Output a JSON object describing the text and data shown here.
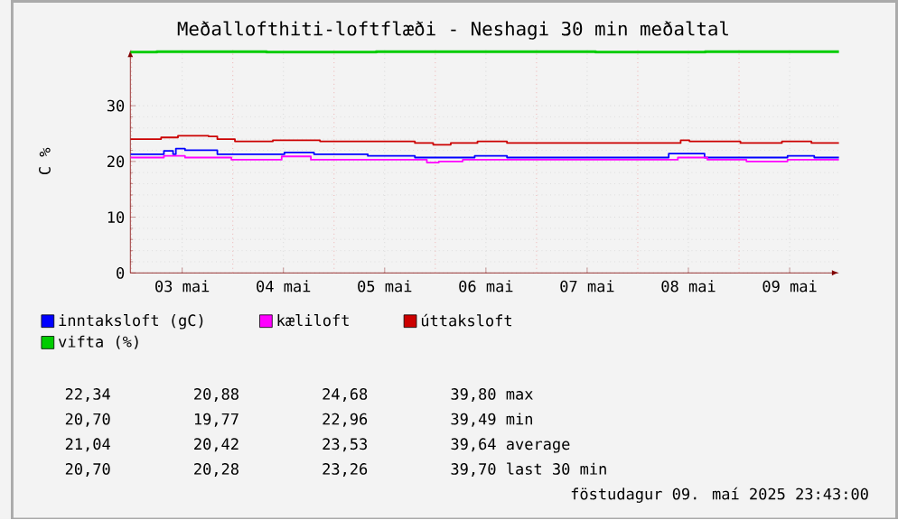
{
  "chart_data": {
    "type": "step",
    "title": "Meðallofthiti-loftflæði - Neshagi 30 min meðaltal",
    "ylabel": "C %",
    "xlim": [
      "2025-05-02T23:43",
      "2025-05-09T23:43"
    ],
    "xticks": [
      {
        "value": "2025-05-03T00:00",
        "label": null
      },
      {
        "value": "2025-05-03T12:00",
        "label": "03 mai"
      },
      {
        "value": "2025-05-04T00:00",
        "label": null
      },
      {
        "value": "2025-05-04T12:00",
        "label": "04 mai"
      },
      {
        "value": "2025-05-05T00:00",
        "label": null
      },
      {
        "value": "2025-05-05T12:00",
        "label": "05 mai"
      },
      {
        "value": "2025-05-06T00:00",
        "label": null
      },
      {
        "value": "2025-05-06T12:00",
        "label": "06 mai"
      },
      {
        "value": "2025-05-07T00:00",
        "label": null
      },
      {
        "value": "2025-05-07T12:00",
        "label": "07 mai"
      },
      {
        "value": "2025-05-08T00:00",
        "label": null
      },
      {
        "value": "2025-05-08T12:00",
        "label": "08 mai"
      },
      {
        "value": "2025-05-09T00:00",
        "label": null
      },
      {
        "value": "2025-05-09T12:00",
        "label": "09 mai"
      }
    ],
    "ylim": [
      0,
      40
    ],
    "yticks": [
      0,
      10,
      20,
      30
    ],
    "grid": true,
    "legend": "bottom",
    "series": [
      {
        "name": "inntaksloft (gC)",
        "color": "#0000ff",
        "x": [
          "2025-05-02T23:43",
          "2025-05-03T07:40",
          "2025-05-03T09:50",
          "2025-05-03T10:30",
          "2025-05-03T12:40",
          "2025-05-03T20:20",
          "2025-05-04T12:15",
          "2025-05-04T19:15",
          "2025-05-05T08:00",
          "2025-05-05T19:10",
          "2025-05-06T09:20",
          "2025-05-06T17:00",
          "2025-05-08T07:20",
          "2025-05-08T15:50",
          "2025-05-09T11:30",
          "2025-05-09T17:50",
          "2025-05-09T23:43"
        ],
        "values": [
          21.3,
          21.9,
          21.3,
          22.3,
          22.0,
          21.3,
          21.6,
          21.3,
          21.0,
          20.7,
          21.0,
          20.7,
          21.4,
          20.7,
          21.0,
          20.7,
          20.7
        ]
      },
      {
        "name": "kæliloft",
        "color": "#ff00ff",
        "x": [
          "2025-05-02T23:43",
          "2025-05-03T07:40",
          "2025-05-03T12:40",
          "2025-05-03T23:40",
          "2025-05-04T11:35",
          "2025-05-04T18:30",
          "2025-05-05T22:00",
          "2025-05-06T00:50",
          "2025-05-06T06:30",
          "2025-05-08T09:30",
          "2025-05-08T16:30",
          "2025-05-09T01:45",
          "2025-05-09T11:30",
          "2025-05-09T23:43"
        ],
        "values": [
          20.7,
          21.0,
          20.7,
          20.3,
          20.9,
          20.3,
          19.8,
          20.0,
          20.3,
          20.7,
          20.3,
          20.0,
          20.3,
          20.3
        ]
      },
      {
        "name": "úttaksloft",
        "color": "#cc0000",
        "x": [
          "2025-05-02T23:43",
          "2025-05-03T07:00",
          "2025-05-03T11:00",
          "2025-05-03T18:15",
          "2025-05-03T20:20",
          "2025-05-04T00:30",
          "2025-05-04T09:30",
          "2025-05-04T20:40",
          "2025-05-05T19:10",
          "2025-05-05T23:30",
          "2025-05-06T03:40",
          "2025-05-06T10:00",
          "2025-05-06T17:00",
          "2025-05-08T10:10",
          "2025-05-08T12:15",
          "2025-05-09T00:20",
          "2025-05-09T10:10",
          "2025-05-09T17:10",
          "2025-05-09T23:43"
        ],
        "values": [
          24.0,
          24.3,
          24.6,
          24.5,
          24.0,
          23.6,
          23.8,
          23.6,
          23.3,
          23.0,
          23.3,
          23.6,
          23.3,
          23.8,
          23.6,
          23.3,
          23.6,
          23.3,
          23.3
        ]
      },
      {
        "name": "vifta (%)",
        "color": "#00cc00",
        "x": [
          "2025-05-02T23:43",
          "2025-05-03T06:00",
          "2025-05-04T08:00",
          "2025-05-05T10:00",
          "2025-05-06T12:00",
          "2025-05-07T14:00",
          "2025-05-08T16:00",
          "2025-05-09T18:00",
          "2025-05-09T23:43"
        ],
        "values": [
          39.6,
          39.7,
          39.6,
          39.7,
          39.7,
          39.6,
          39.7,
          39.7,
          39.7
        ]
      }
    ],
    "annotations": [
      "22,34",
      "20,88",
      "24,68",
      "39,80 max",
      "20,70",
      "19,77",
      "22,96",
      "39,49 min",
      "21,04",
      "20,42",
      "23,53",
      "39,64 average",
      "20,70",
      "20,28",
      "23,26",
      "39,70 last 30 min",
      "föstudagur 09. maí 2025 23:43:00"
    ]
  }
}
